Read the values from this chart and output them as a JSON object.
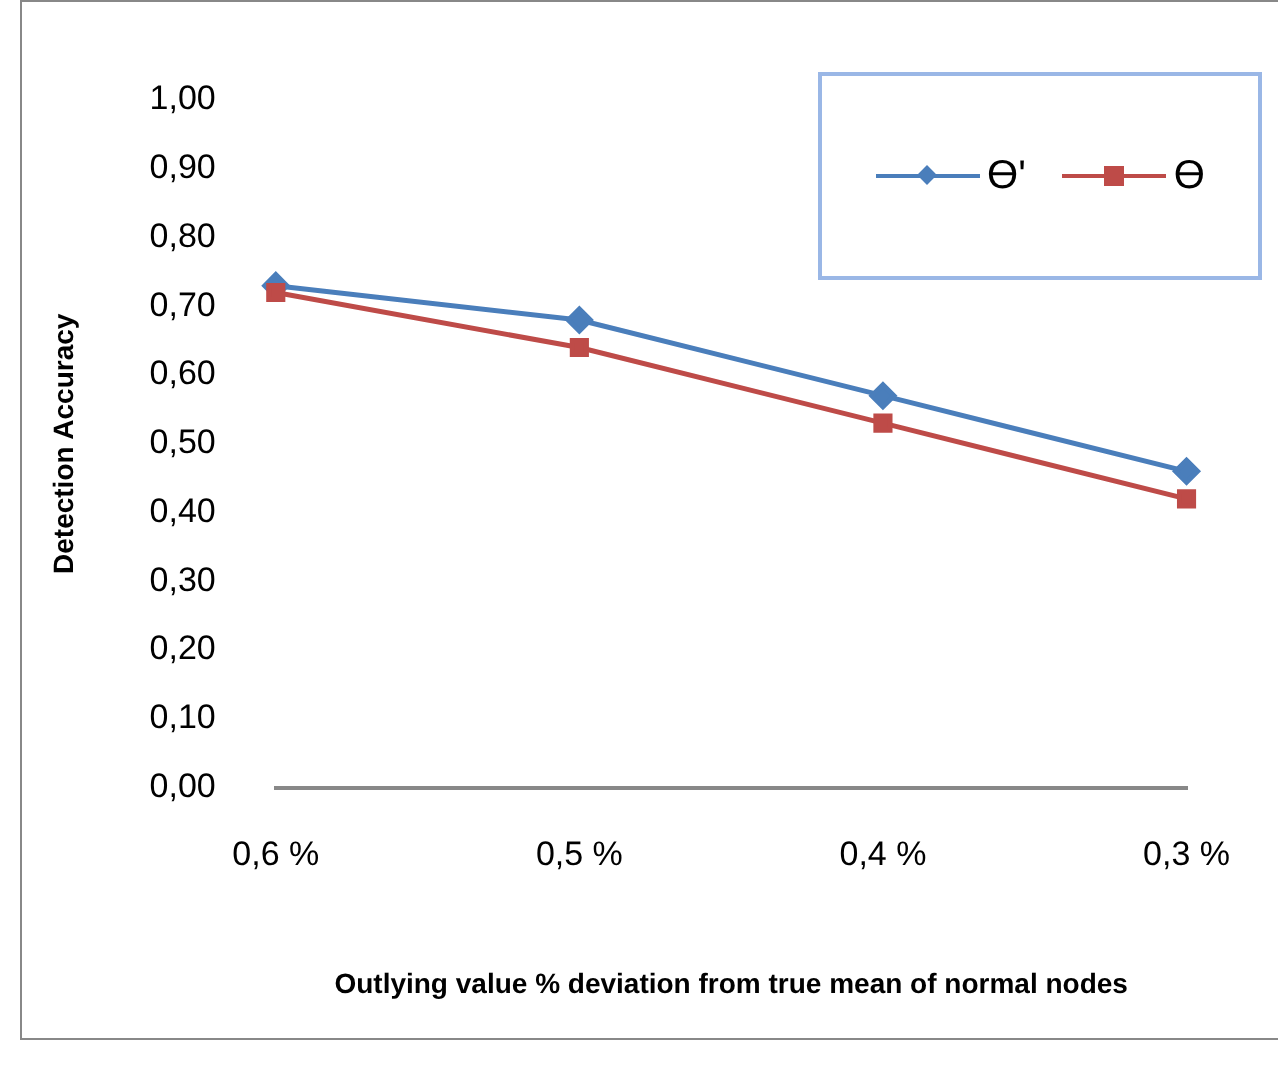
{
  "chart_data": {
    "type": "line",
    "xlabel": "Outlying value % deviation from true mean of normal nodes",
    "ylabel": "Detection Accuracy",
    "categories": [
      "0,6 %",
      "0,5 %",
      "0,4 %",
      "0,3 %"
    ],
    "series": [
      {
        "name": "ϴ'",
        "color": "#4a7ebb",
        "marker": "diamond",
        "values": [
          0.73,
          0.68,
          0.57,
          0.46
        ]
      },
      {
        "name": "ϴ",
        "color": "#be4b48",
        "marker": "square",
        "values": [
          0.72,
          0.64,
          0.53,
          0.42
        ]
      }
    ],
    "ylim": [
      0,
      1
    ],
    "yticks": [
      {
        "value": 0,
        "label": "0,00"
      },
      {
        "value": 0.1,
        "label": "0,10"
      },
      {
        "value": 0.2,
        "label": "0,20"
      },
      {
        "value": 0.3,
        "label": "0,30"
      },
      {
        "value": 0.4,
        "label": "0,40"
      },
      {
        "value": 0.5,
        "label": "0,50"
      },
      {
        "value": 0.6,
        "label": "0,60"
      },
      {
        "value": 0.7,
        "label": "0,70"
      },
      {
        "value": 0.8,
        "label": "0,80"
      },
      {
        "value": 0.9,
        "label": "0,90"
      },
      {
        "value": 1,
        "label": "1,00"
      }
    ],
    "grid": false,
    "legend": "top right"
  }
}
